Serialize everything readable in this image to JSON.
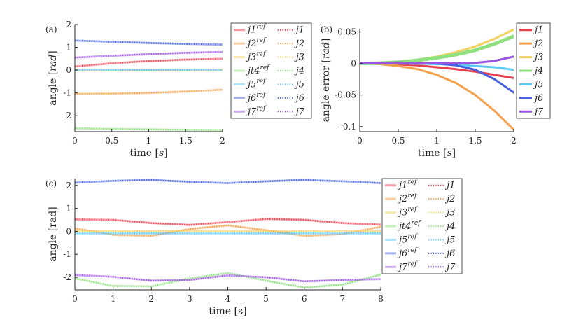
{
  "colors": {
    "j1": "#e8404f",
    "j2": "#f5a04a",
    "j3": "#f2d25e",
    "j4": "#8fe07f",
    "j5": "#5ec8f5",
    "j6": "#4a62de",
    "j7": "#9a55de",
    "axis": "#262626"
  },
  "chart_data": [
    {
      "id": "a",
      "panel_label": "(a)",
      "type": "line",
      "xlabel": "time [s]",
      "ylabel": "angle [rad]",
      "xlim": [
        0,
        2
      ],
      "ylim": [
        -2.7,
        2
      ],
      "xticks": [
        0,
        0.5,
        1,
        1.5,
        2
      ],
      "xtick_labels": [
        "0",
        "0.5",
        "1",
        "1.5",
        "2"
      ],
      "yticks": [
        2,
        1,
        0,
        -1,
        -2
      ],
      "ytick_labels": [
        "2",
        "1",
        "0",
        "-1",
        "-2"
      ],
      "legend_position": "right",
      "legend": {
        "ref": [
          "j1ref",
          "j2ref",
          "j3ref",
          "jt4ref",
          "j5ref",
          "j6ref",
          "j7ref"
        ],
        "act": [
          "j1",
          "j2",
          "j3",
          "j4",
          "j5",
          "j6",
          "j7"
        ]
      },
      "series": [
        {
          "name": "j1",
          "x": [
            0,
            0.5,
            1,
            1.5,
            2
          ],
          "values": [
            0.16,
            0.3,
            0.4,
            0.46,
            0.5
          ]
        },
        {
          "name": "j2",
          "x": [
            0,
            0.5,
            1,
            1.5,
            2
          ],
          "values": [
            -1.04,
            -1.03,
            -1.0,
            -0.94,
            -0.86
          ]
        },
        {
          "name": "j3",
          "x": [
            0,
            0.5,
            1,
            1.5,
            2
          ],
          "values": [
            0.02,
            0.02,
            0.02,
            0.02,
            0.02
          ]
        },
        {
          "name": "j4",
          "x": [
            0,
            0.5,
            1,
            1.5,
            2
          ],
          "values": [
            -2.55,
            -2.58,
            -2.6,
            -2.62,
            -2.63
          ]
        },
        {
          "name": "j5",
          "x": [
            0,
            0.5,
            1,
            1.5,
            2
          ],
          "values": [
            0.0,
            0.0,
            0.0,
            0.0,
            0.0
          ]
        },
        {
          "name": "j6",
          "x": [
            0,
            0.5,
            1,
            1.5,
            2
          ],
          "values": [
            1.3,
            1.24,
            1.19,
            1.15,
            1.12
          ]
        },
        {
          "name": "j7",
          "x": [
            0,
            0.5,
            1,
            1.5,
            2
          ],
          "values": [
            0.55,
            0.63,
            0.7,
            0.76,
            0.8
          ]
        }
      ]
    },
    {
      "id": "b",
      "panel_label": "(b)",
      "type": "line",
      "xlabel": "time [s]",
      "ylabel": "angle error [rad]",
      "xlim": [
        0,
        2
      ],
      "ylim": [
        -0.108,
        0.055
      ],
      "xticks": [
        0,
        0.5,
        1,
        1.5,
        2
      ],
      "xtick_labels": [
        "0",
        "0.5",
        "1",
        "1.5",
        "2"
      ],
      "yticks": [
        0.05,
        0,
        -0.05,
        -0.1
      ],
      "ytick_labels": [
        "0.05",
        "0",
        "-0.05",
        "-0.1"
      ],
      "legend_position": "right",
      "legend": {
        "entries": [
          "j1",
          "j2",
          "j3",
          "j4",
          "j5",
          "j6",
          "j7"
        ]
      },
      "series": [
        {
          "name": "j1",
          "x": [
            0,
            0.25,
            0.5,
            0.75,
            1,
            1.25,
            1.5,
            1.75,
            2
          ],
          "values": [
            0,
            -0.0005,
            -0.0015,
            -0.003,
            -0.006,
            -0.009,
            -0.013,
            -0.018,
            -0.023
          ]
        },
        {
          "name": "j2",
          "x": [
            0,
            0.25,
            0.5,
            0.75,
            1,
            1.25,
            1.5,
            1.75,
            2
          ],
          "values": [
            0,
            -0.001,
            -0.004,
            -0.009,
            -0.018,
            -0.031,
            -0.05,
            -0.075,
            -0.105
          ]
        },
        {
          "name": "j3",
          "x": [
            0,
            0.25,
            0.5,
            0.75,
            1,
            1.25,
            1.5,
            1.75,
            2
          ],
          "values": [
            0,
            0.001,
            0.003,
            0.006,
            0.011,
            0.018,
            0.027,
            0.039,
            0.054
          ]
        },
        {
          "name": "j4",
          "x": [
            0,
            0.25,
            0.5,
            0.75,
            1,
            1.25,
            1.5,
            1.75,
            2
          ],
          "values": [
            0,
            0.0005,
            0.002,
            0.005,
            0.009,
            0.014,
            0.021,
            0.031,
            0.043
          ]
        },
        {
          "name": "j5",
          "x": [
            0,
            0.25,
            0.5,
            0.75,
            1,
            1.25,
            1.5,
            1.75,
            2
          ],
          "values": [
            0,
            0,
            0,
            -0.0003,
            -0.001,
            -0.002,
            -0.004,
            -0.006,
            -0.01
          ]
        },
        {
          "name": "j6",
          "x": [
            0,
            0.25,
            0.5,
            0.75,
            1,
            1.25,
            1.5,
            1.75,
            2
          ],
          "values": [
            0.001,
            0.001,
            0.0015,
            0.001,
            0,
            -0.003,
            -0.01,
            -0.025,
            -0.046
          ]
        },
        {
          "name": "j7",
          "x": [
            0,
            0.25,
            0.5,
            0.75,
            1,
            1.25,
            1.5,
            1.75,
            2
          ],
          "values": [
            0.001,
            0.001,
            0.001,
            0.0005,
            0.0005,
            0.0005,
            0.001,
            0.004,
            0.011
          ]
        }
      ]
    },
    {
      "id": "c",
      "panel_label": "(c)",
      "type": "line",
      "xlabel": "time [s]",
      "ylabel": "angle [rad]",
      "xlim": [
        0,
        8
      ],
      "ylim": [
        -2.55,
        2.3
      ],
      "xticks": [
        0,
        1,
        2,
        3,
        4,
        5,
        6,
        7,
        8
      ],
      "xtick_labels": [
        "0",
        "1",
        "2",
        "3",
        "4",
        "5",
        "6",
        "7",
        "8"
      ],
      "yticks": [
        2,
        1,
        0,
        -1,
        -2
      ],
      "ytick_labels": [
        "2",
        "1",
        "0",
        "-1",
        "-2"
      ],
      "legend_position": "right",
      "legend": {
        "ref": [
          "j1ref",
          "j2ref",
          "j3ref",
          "jt4ref",
          "j5ref",
          "j6ref",
          "j7ref"
        ],
        "act": [
          "j1",
          "j2",
          "j3",
          "j4",
          "j5",
          "j6",
          "j7"
        ]
      },
      "series": [
        {
          "name": "j1",
          "x": [
            0,
            1,
            2,
            3,
            4,
            5,
            6,
            7,
            8
          ],
          "values": [
            0.52,
            0.5,
            0.36,
            0.28,
            0.4,
            0.54,
            0.5,
            0.36,
            0.29
          ]
        },
        {
          "name": "j2",
          "x": [
            0,
            1,
            2,
            3,
            4,
            5,
            6,
            7,
            8
          ],
          "values": [
            0.13,
            -0.15,
            -0.2,
            0.1,
            0.26,
            0.05,
            -0.2,
            -0.12,
            0.2
          ]
        },
        {
          "name": "j3",
          "x": [
            0,
            1,
            2,
            3,
            4,
            5,
            6,
            7,
            8
          ],
          "values": [
            0.0,
            0.0,
            0.0,
            0.0,
            0.0,
            0.0,
            0.0,
            0.0,
            0.0
          ]
        },
        {
          "name": "j4",
          "x": [
            0,
            1,
            2,
            3,
            4,
            5,
            6,
            7,
            8
          ],
          "values": [
            -2.05,
            -2.38,
            -2.4,
            -2.05,
            -1.82,
            -2.15,
            -2.45,
            -2.32,
            -1.88
          ]
        },
        {
          "name": "j5",
          "x": [
            0,
            1,
            2,
            3,
            4,
            5,
            6,
            7,
            8
          ],
          "values": [
            -0.09,
            -0.09,
            -0.09,
            -0.09,
            -0.09,
            -0.09,
            -0.09,
            -0.09,
            -0.09
          ]
        },
        {
          "name": "j6",
          "x": [
            0,
            1,
            2,
            3,
            4,
            5,
            6,
            7,
            8
          ],
          "values": [
            2.12,
            2.2,
            2.24,
            2.16,
            2.1,
            2.18,
            2.24,
            2.18,
            2.1
          ]
        },
        {
          "name": "j7",
          "x": [
            0,
            1,
            2,
            3,
            4,
            5,
            6,
            7,
            8
          ],
          "values": [
            -1.9,
            -1.98,
            -2.15,
            -2.12,
            -1.92,
            -2.0,
            -2.18,
            -2.12,
            -2.08
          ]
        }
      ]
    }
  ]
}
